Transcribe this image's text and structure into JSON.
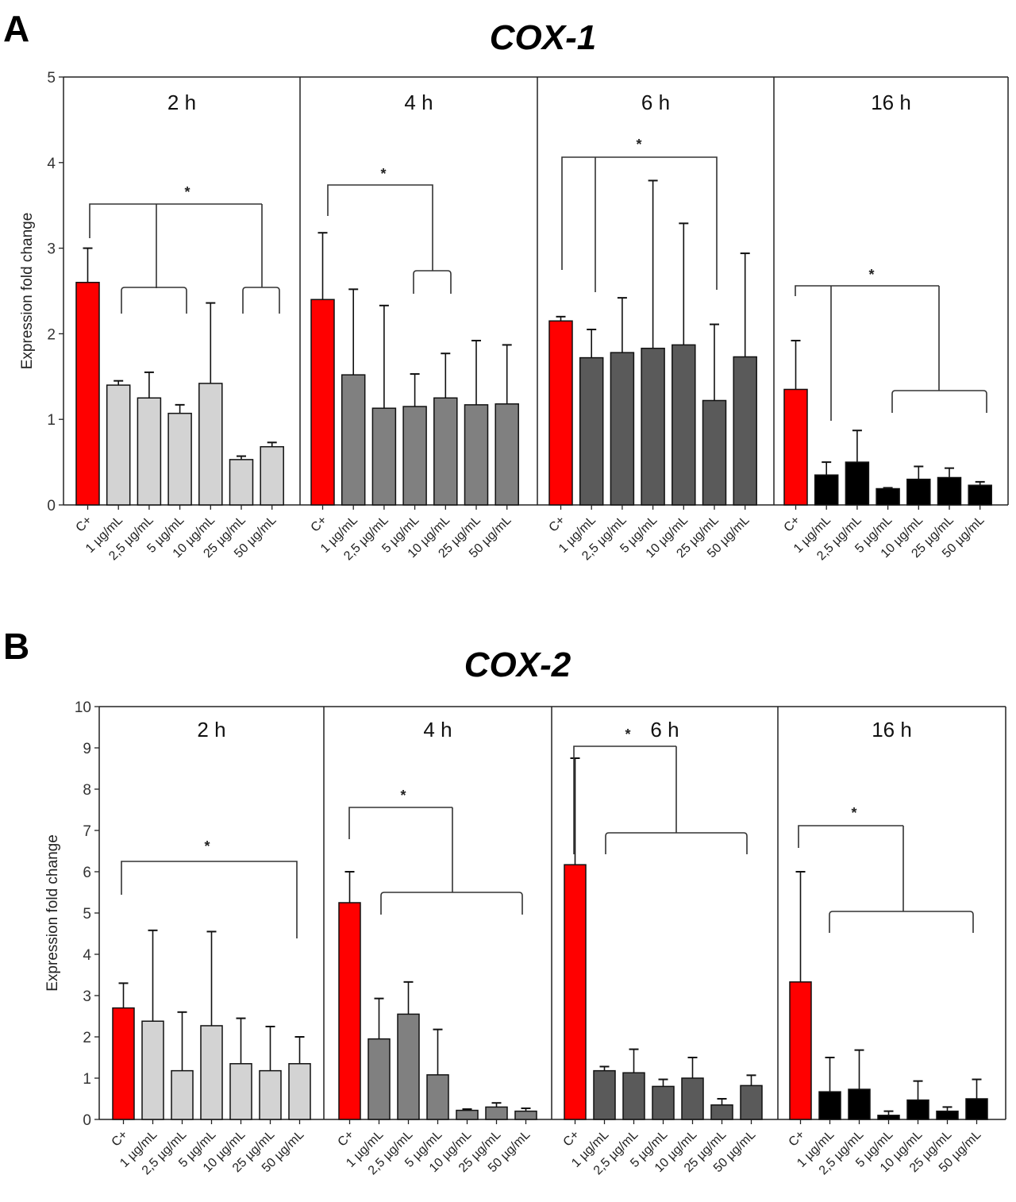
{
  "figure": {
    "panels": [
      {
        "letter": "A",
        "title": "COX-1"
      },
      {
        "letter": "B",
        "title": "COX-2"
      }
    ]
  },
  "colors": {
    "control": "#ff0000",
    "2h": "#d3d3d3",
    "4h": "#808080",
    "6h": "#5a5a5a",
    "16h": "#000000"
  },
  "chart_data": [
    {
      "type": "bar",
      "title": "COX-1",
      "panel_letter": "A",
      "ylabel": "Expression fold change",
      "xlabel": "",
      "ylim": [
        0,
        5
      ],
      "yticks": [
        0,
        1,
        2,
        3,
        4,
        5
      ],
      "categories": [
        "C+",
        "1 µg/mL",
        "2,5 µg/mL",
        "5 µg/mL",
        "10 µg/mL",
        "25 µg/mL",
        "50 µg/mL"
      ],
      "groups": [
        {
          "name": "2 h",
          "values": [
            2.6,
            1.4,
            1.25,
            1.07,
            1.42,
            0.53,
            0.68
          ],
          "error_upper": [
            3.0,
            1.45,
            1.55,
            1.17,
            2.36,
            0.57,
            0.73
          ],
          "significance": "*",
          "brackets": "C+ vs (1-5 µg/mL) and (25-50 µg/mL)"
        },
        {
          "name": "4 h",
          "values": [
            2.4,
            1.52,
            1.13,
            1.15,
            1.25,
            1.17,
            1.18
          ],
          "error_upper": [
            3.18,
            2.52,
            2.33,
            1.53,
            1.77,
            1.92,
            1.87
          ],
          "significance": "*",
          "brackets": "C+ vs (5-10 µg/mL)"
        },
        {
          "name": "6 h",
          "values": [
            2.15,
            1.72,
            1.78,
            1.83,
            1.87,
            1.22,
            1.73
          ],
          "error_upper": [
            2.2,
            2.05,
            2.42,
            3.79,
            3.29,
            2.11,
            2.94
          ],
          "significance": "*",
          "brackets": "C+ vs 1 µg/mL and 25 µg/mL"
        },
        {
          "name": "16 h",
          "values": [
            1.35,
            0.35,
            0.5,
            0.19,
            0.3,
            0.32,
            0.23
          ],
          "error_upper": [
            1.92,
            0.5,
            0.87,
            0.2,
            0.45,
            0.43,
            0.27
          ],
          "significance": "*",
          "brackets": "C+ vs 1 µg/mL and (10-50 µg/mL)"
        }
      ]
    },
    {
      "type": "bar",
      "title": "COX-2",
      "panel_letter": "B",
      "ylabel": "Expression fold change",
      "xlabel": "",
      "ylim": [
        0,
        10
      ],
      "yticks": [
        0,
        1,
        2,
        3,
        4,
        5,
        6,
        7,
        8,
        9,
        10
      ],
      "categories": [
        "C+",
        "1 µg/mL",
        "2,5 µg/mL",
        "5 µg/mL",
        "10 µg/mL",
        "25 µg/mL",
        "50 µg/mL"
      ],
      "groups": [
        {
          "name": "2 h",
          "values": [
            2.7,
            2.38,
            1.18,
            2.27,
            1.35,
            1.18,
            1.35
          ],
          "error_upper": [
            3.3,
            4.58,
            2.6,
            4.55,
            2.45,
            2.25,
            2.0
          ],
          "significance": "*",
          "brackets": "C+ vs 50 µg/mL"
        },
        {
          "name": "4 h",
          "values": [
            5.25,
            1.95,
            2.55,
            1.08,
            0.22,
            0.3,
            0.2
          ],
          "error_upper": [
            6.0,
            2.93,
            3.33,
            2.18,
            0.25,
            0.4,
            0.27
          ],
          "significance": "*",
          "brackets": "C+ vs (1-50 µg/mL)"
        },
        {
          "name": "6 h",
          "values": [
            6.17,
            1.18,
            1.13,
            0.8,
            1.0,
            0.35,
            0.82
          ],
          "error_upper": [
            8.75,
            1.28,
            1.7,
            0.97,
            1.5,
            0.5,
            1.07
          ],
          "significance": "*",
          "brackets": "C+ vs (1-50 µg/mL)"
        },
        {
          "name": "16 h",
          "values": [
            3.33,
            0.67,
            0.73,
            0.1,
            0.47,
            0.2,
            0.5
          ],
          "error_upper": [
            6.0,
            1.5,
            1.68,
            0.2,
            0.93,
            0.3,
            0.97
          ],
          "significance": "*",
          "brackets": "C+ vs (1-50 µg/mL)"
        }
      ]
    }
  ]
}
